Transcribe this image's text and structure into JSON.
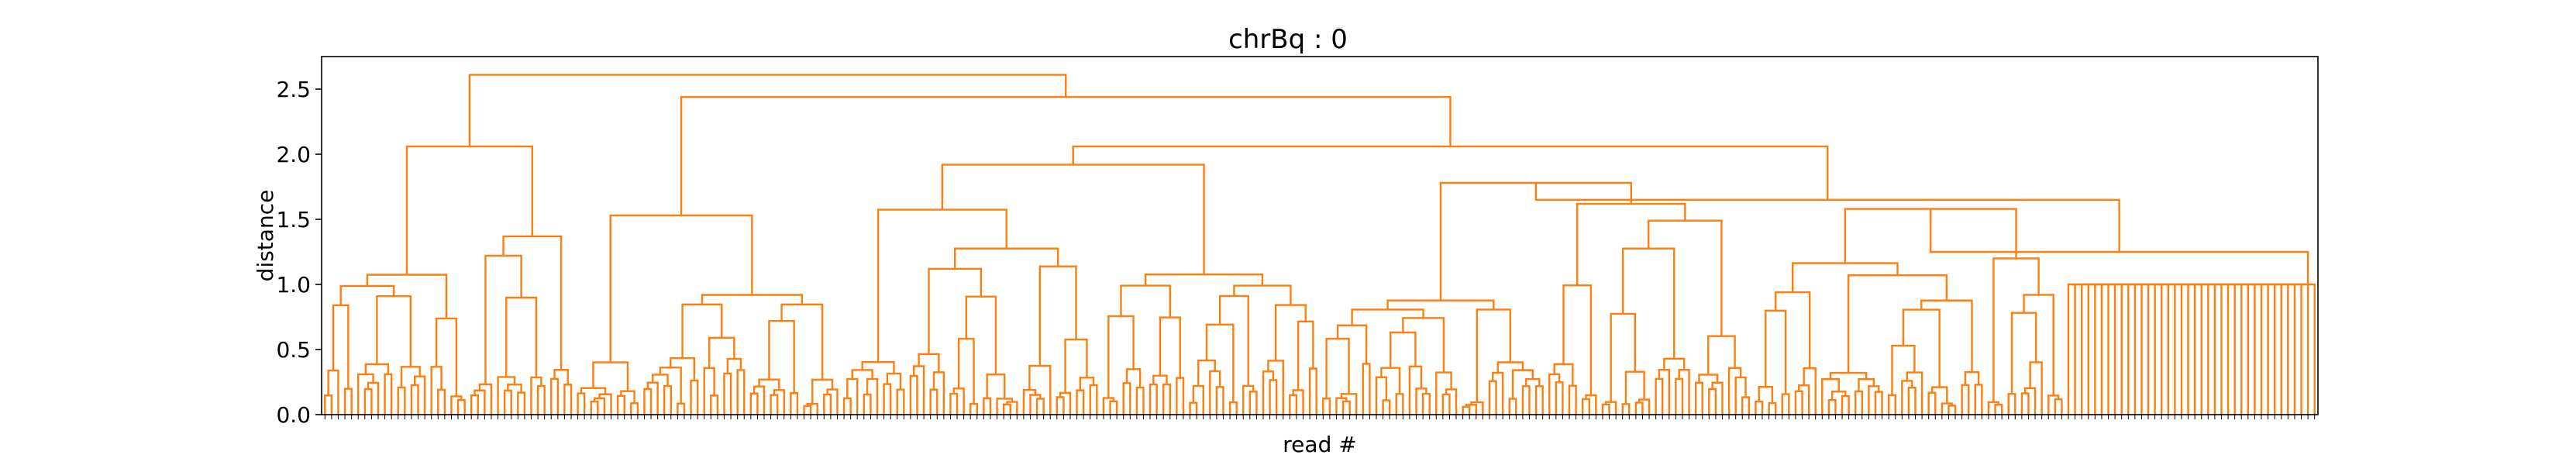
{
  "chart_data": {
    "type": "dendrogram",
    "title": "chrBq : 0",
    "xlabel": "read #",
    "ylabel": "distance",
    "ylim": [
      0,
      2.75
    ],
    "yticks": [
      0.0,
      0.5,
      1.0,
      1.5,
      2.0,
      2.5
    ],
    "ytick_labels": [
      "0.0",
      "0.5",
      "1.0",
      "1.5",
      "2.0",
      "2.5"
    ],
    "grid": false,
    "line_color": "#ff7f0e",
    "leaf_count": 300,
    "top_merges": [
      {
        "distance": 2.61,
        "description": "root join"
      },
      {
        "distance": 2.44,
        "description": "second-level right join"
      },
      {
        "distance": 2.06,
        "description": "left cluster join"
      },
      {
        "distance": 1.65,
        "description": "wide right shoulder level"
      },
      {
        "distance": 1.25,
        "description": "right comb cluster join"
      },
      {
        "distance": 1.0,
        "description": "flat comb of singleton reads at far right"
      }
    ]
  }
}
